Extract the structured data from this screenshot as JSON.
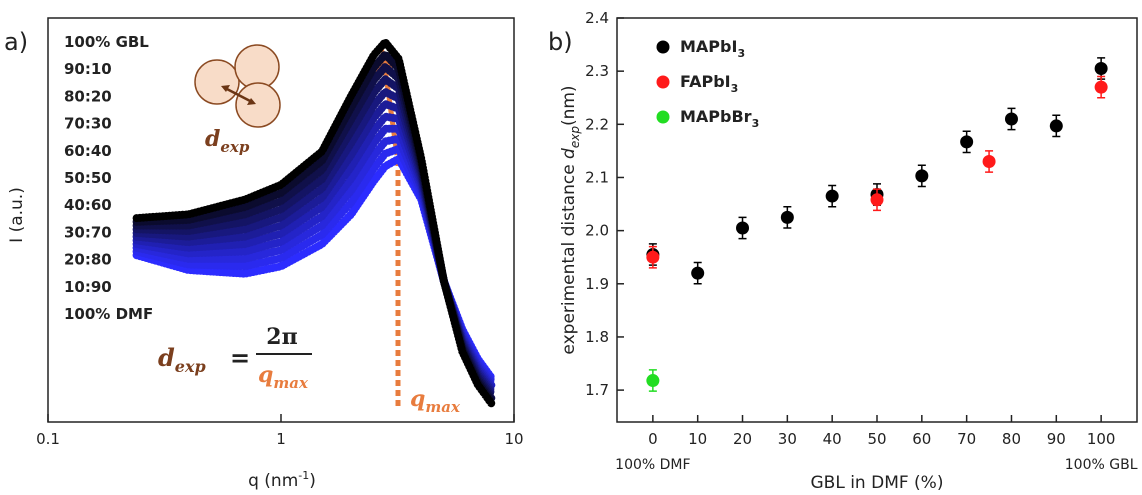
{
  "chart_data": [
    {
      "type": "line",
      "panel_label": "a)",
      "xlabel": {
        "main": "q (nm",
        "sup": "-1",
        "end": ")"
      },
      "ylabel": "I (a.u.)",
      "xscale": "log",
      "xlim": [
        0.1,
        10
      ],
      "xticks": [
        0.1,
        1,
        10
      ],
      "ylim": [
        -0.03,
        1.06
      ],
      "x": [
        0.24,
        0.4,
        0.7,
        1,
        1.5,
        2,
        2.5,
        2.8,
        3.2,
        4,
        5,
        6,
        7,
        8
      ],
      "series": [
        {
          "name": "100% GBL",
          "color": "#000000",
          "values": [
            0.52,
            0.53,
            0.57,
            0.61,
            0.7,
            0.85,
            0.96,
            0.995,
            0.95,
            0.68,
            0.35,
            0.16,
            0.07,
            0.02
          ]
        },
        {
          "name": "90:10",
          "color": "#0b0b2e",
          "values": [
            0.51,
            0.515,
            0.55,
            0.588,
            0.675,
            0.818,
            0.926,
            0.962,
            0.923,
            0.669,
            0.35,
            0.166,
            0.077,
            0.027
          ]
        },
        {
          "name": "80:20",
          "color": "#10104a",
          "values": [
            0.5,
            0.5,
            0.53,
            0.566,
            0.65,
            0.786,
            0.892,
            0.928,
            0.896,
            0.658,
            0.35,
            0.172,
            0.084,
            0.034
          ]
        },
        {
          "name": "70:30",
          "color": "#141464",
          "values": [
            0.49,
            0.485,
            0.51,
            0.544,
            0.625,
            0.754,
            0.858,
            0.895,
            0.869,
            0.647,
            0.35,
            0.178,
            0.091,
            0.041
          ]
        },
        {
          "name": "60:40",
          "color": "#18187e",
          "values": [
            0.48,
            0.47,
            0.49,
            0.522,
            0.6,
            0.722,
            0.824,
            0.861,
            0.842,
            0.636,
            0.35,
            0.184,
            0.098,
            0.048
          ]
        },
        {
          "name": "50:50",
          "color": "#1c1c98",
          "values": [
            0.47,
            0.455,
            0.47,
            0.5,
            0.575,
            0.69,
            0.79,
            0.828,
            0.815,
            0.625,
            0.35,
            0.19,
            0.105,
            0.055
          ]
        },
        {
          "name": "40:60",
          "color": "#2020b2",
          "values": [
            0.46,
            0.44,
            0.45,
            0.478,
            0.55,
            0.658,
            0.756,
            0.794,
            0.788,
            0.614,
            0.35,
            0.196,
            0.112,
            0.062
          ]
        },
        {
          "name": "30:70",
          "color": "#2424c8",
          "values": [
            0.45,
            0.425,
            0.43,
            0.456,
            0.525,
            0.626,
            0.722,
            0.761,
            0.761,
            0.603,
            0.35,
            0.202,
            0.119,
            0.069
          ]
        },
        {
          "name": "20:80",
          "color": "#2828dc",
          "values": [
            0.44,
            0.41,
            0.41,
            0.434,
            0.5,
            0.594,
            0.688,
            0.727,
            0.734,
            0.592,
            0.35,
            0.208,
            0.126,
            0.076
          ]
        },
        {
          "name": "10:90",
          "color": "#2a2aee",
          "values": [
            0.43,
            0.395,
            0.39,
            0.412,
            0.475,
            0.562,
            0.654,
            0.694,
            0.707,
            0.581,
            0.35,
            0.214,
            0.133,
            0.083
          ]
        },
        {
          "name": "100% DMF",
          "color": "#2c2cff",
          "values": [
            0.42,
            0.38,
            0.37,
            0.39,
            0.45,
            0.53,
            0.62,
            0.66,
            0.68,
            0.57,
            0.35,
            0.22,
            0.14,
            0.09
          ]
        }
      ],
      "annotations": {
        "dexp_label": {
          "main": "d",
          "sub": "exp"
        },
        "formula": {
          "lhs_main": "d",
          "lhs_sub": "exp",
          "equals": "=",
          "numerator": "2π",
          "denominator_main": "q",
          "denominator_sub": "max"
        },
        "qmax_label": {
          "main": "q",
          "sub": "max"
        }
      }
    },
    {
      "type": "scatter",
      "panel_label": "b)",
      "xlabel": "GBL in DMF (%)",
      "ylabel": {
        "pre": "experimental distance ",
        "main": "d",
        "sub": "exp",
        "post": "(nm)"
      },
      "xlim": [
        -8,
        108
      ],
      "xticks": [
        0,
        10,
        20,
        30,
        40,
        50,
        60,
        70,
        80,
        90,
        100
      ],
      "ylim": [
        1.64,
        2.4
      ],
      "yticks": [
        1.7,
        1.8,
        1.9,
        {
          "value": 2,
          "label": "2.0"
        },
        2.1,
        2.2,
        2.3,
        2.4
      ],
      "x_end_labels": [
        {
          "value": 0,
          "label": "100% DMF"
        },
        {
          "value": 100,
          "label": "100% GBL"
        }
      ],
      "legend": "upper left",
      "series": [
        {
          "name": "MAPbI3",
          "color": "#000000",
          "x": [
            0,
            10,
            20,
            30,
            40,
            50,
            60,
            70,
            80,
            90,
            100
          ],
          "values": [
            1.955,
            1.92,
            2.005,
            2.025,
            2.065,
            2.068,
            2.103,
            2.167,
            2.21,
            2.197,
            2.305
          ],
          "errors": [
            0.02,
            0.02,
            0.02,
            0.02,
            0.02,
            0.02,
            0.02,
            0.02,
            0.02,
            0.02,
            0.02
          ]
        },
        {
          "name": "FAPbI3",
          "color": "#ff1a1a",
          "x": [
            0,
            50,
            75,
            100
          ],
          "values": [
            1.95,
            2.058,
            2.13,
            2.27
          ],
          "errors": [
            0.02,
            0.02,
            0.02,
            0.02
          ]
        },
        {
          "name": "MAPbBr3",
          "color": "#22dd22",
          "x": [
            0
          ],
          "values": [
            1.718
          ],
          "errors": [
            0.02
          ]
        }
      ]
    }
  ]
}
